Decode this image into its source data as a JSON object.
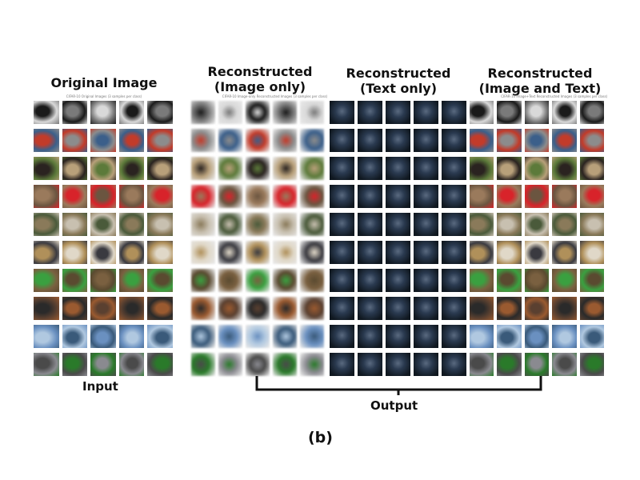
{
  "panels": [
    {
      "id": "original",
      "title": "Original Image",
      "caption": "CIFAR-10 Original Images (3 samples per class)",
      "style": "original"
    },
    {
      "id": "image_only",
      "title": "Reconstructed\n(Image only)",
      "caption": "CIFAR-10 Image-only Reconstructed Images (3 samples per class)",
      "style": "blurry"
    },
    {
      "id": "text_only",
      "title": "Reconstructed\n(Text only)",
      "caption": "",
      "style": "dark"
    },
    {
      "id": "image_text",
      "title": "Reconstructed\n(Image and Text)",
      "caption": "CIFAR-10 Image+Text Reconstructed Images (3 samples per class)",
      "style": "original"
    }
  ],
  "labels": {
    "input": "Input",
    "output": "Output",
    "figure": "(b)"
  },
  "palette": [
    [
      "#d9d9d9",
      "#1a1a1a",
      "#7a7a7a"
    ],
    [
      "#3b5f8a",
      "#c23b2a",
      "#8c8c8c"
    ],
    [
      "#5c7a3a",
      "#2a2320",
      "#b8a07a"
    ],
    [
      "#6b5540",
      "#9a7a5c",
      "#d8232a"
    ],
    [
      "#4a5a3a",
      "#8a7a5a",
      "#c8c0b0"
    ],
    [
      "#3a3a40",
      "#b0905a",
      "#e0d8c8"
    ],
    [
      "#7a6040",
      "#3aa040",
      "#5a4a30"
    ],
    [
      "#5a4030",
      "#2a2a2a",
      "#9a5a30"
    ],
    [
      "#6a90c0",
      "#b0c8e0",
      "#3a5a7a"
    ],
    [
      "#8a8a90",
      "#4a4a4a",
      "#2a7a2a"
    ]
  ]
}
